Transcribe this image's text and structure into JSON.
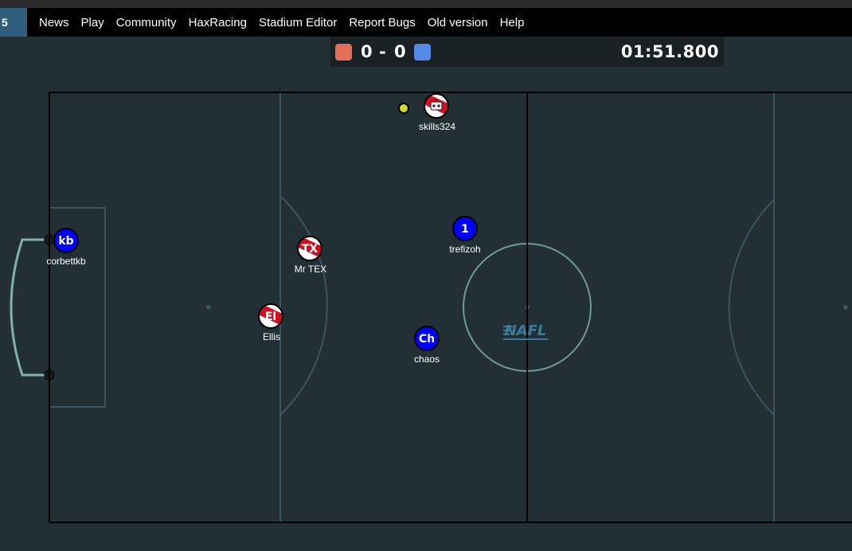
{
  "nav": {
    "badge": "5",
    "links": [
      "News",
      "Play",
      "Community",
      "HaxRacing",
      "Stadium Editor",
      "Report Bugs",
      "Old version",
      "Help"
    ]
  },
  "scoreboard": {
    "red_score": "0",
    "separator": "-",
    "blue_score": "0",
    "timer": "01:51.800",
    "red_color": "#e56e56",
    "blue_color": "#5689e5"
  },
  "field": {
    "logo_text": "NAFL",
    "pitch_color": "#223036",
    "line_color": "#3d5560"
  },
  "players": [
    {
      "name": "skills324",
      "avatar": "",
      "team": "red"
    },
    {
      "name": "kb",
      "avatar": "kb",
      "team": "blue",
      "label": "corbettkb"
    },
    {
      "name": "Mr TEX",
      "avatar": "TX",
      "team": "red"
    },
    {
      "name": "trefizoh",
      "avatar": "1",
      "team": "blue"
    },
    {
      "name": "Ellis",
      "avatar": "El",
      "team": "red"
    },
    {
      "name": "chaos",
      "avatar": "Ch",
      "team": "blue"
    }
  ]
}
